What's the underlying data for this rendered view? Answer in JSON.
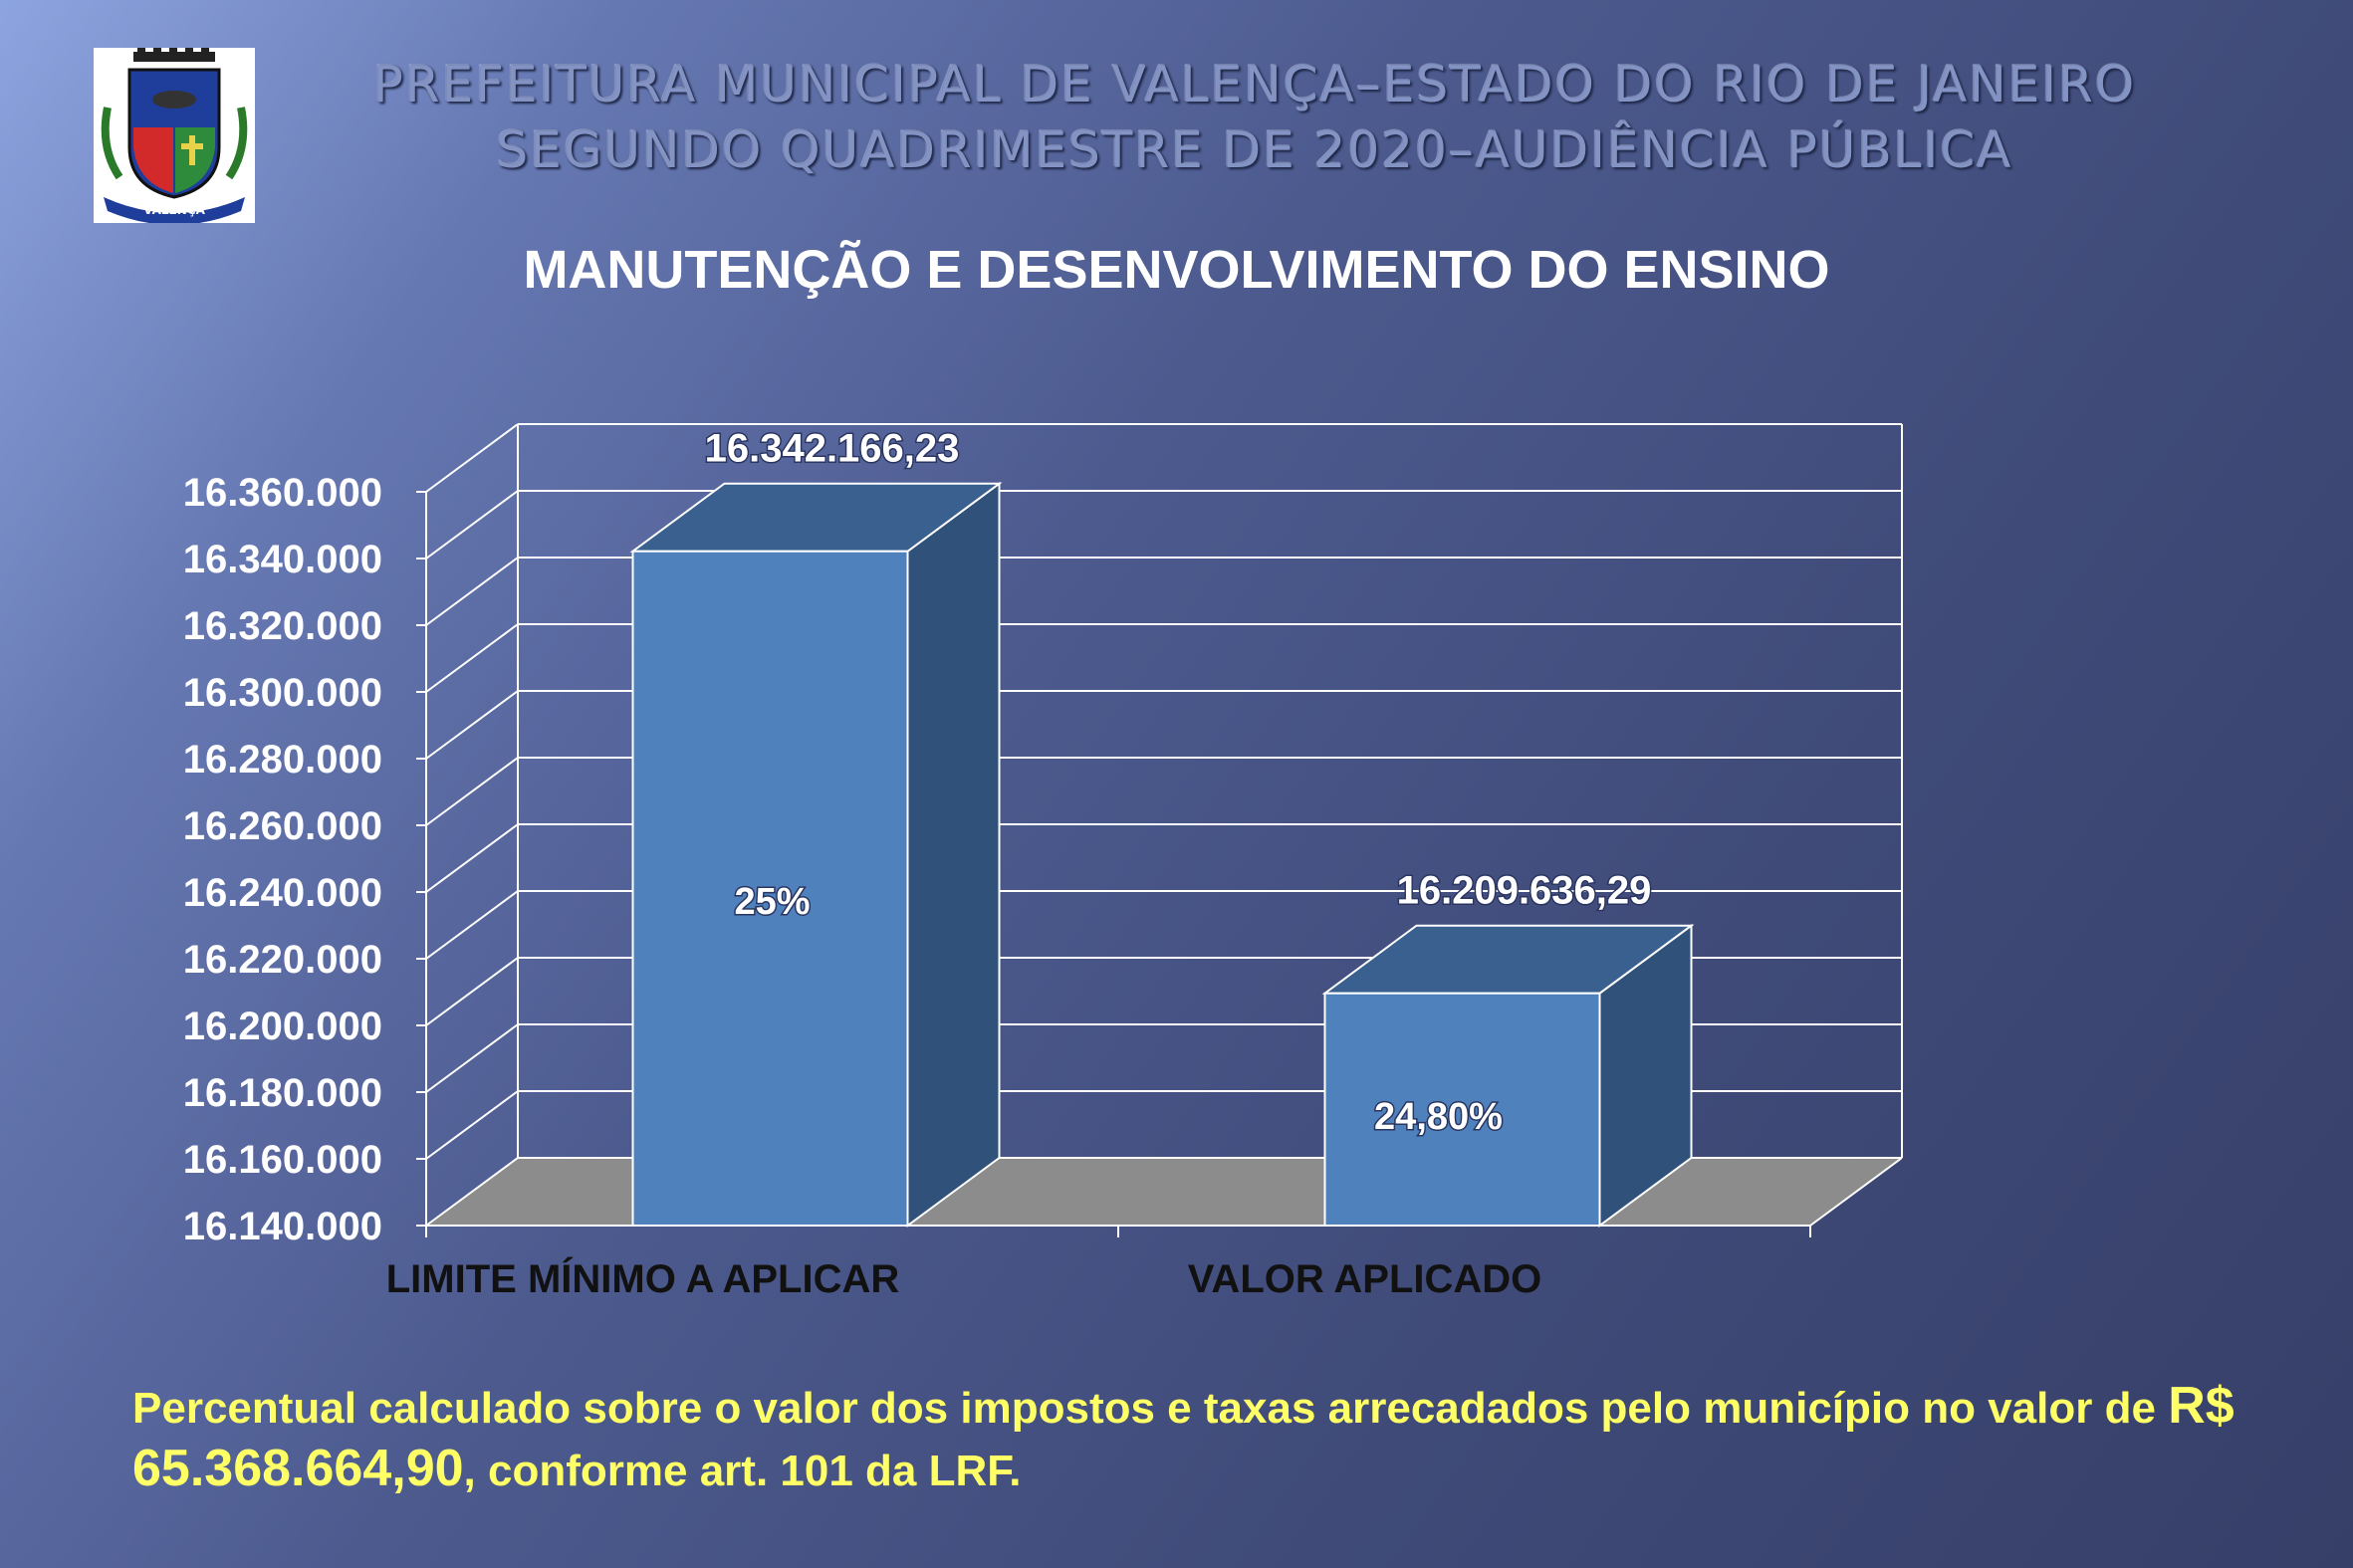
{
  "header": {
    "line1": "PREFEITURA MUNICIPAL DE VALENÇA–ESTADO DO RIO DE JANEIRO",
    "line2": "SEGUNDO QUADRIMESTRE DE 2020–AUDIÊNCIA PÚBLICA"
  },
  "logo": {
    "name": "municipal-coat-of-arms",
    "letters": "VALENÇA"
  },
  "footnote": {
    "part1": "Percentual calculado sobre o valor dos impostos e taxas arrecadados pelo município  no valor de ",
    "amount": "R$ 65.368.664,90",
    "part2": ", conforme art. 101 da LRF."
  },
  "colors": {
    "bar_front": "#4f81bd",
    "bar_side": "#30527a",
    "bar_top": "#3a6090",
    "floor": "#8c8c8c",
    "footnote": "#ffff66",
    "axis_text": "#ffffff",
    "category_text": "#111111"
  },
  "chart_data": {
    "type": "bar",
    "style": "3d-column",
    "title": "MANUTENÇÃO E DESENVOLVIMENTO DO ENSINO",
    "categories": [
      "LIMITE MÍNIMO A APLICAR",
      "VALOR APLICADO"
    ],
    "values": [
      16342166.23,
      16209636.29
    ],
    "value_labels": [
      "16.342.166,23",
      "16.209.636,29"
    ],
    "inner_labels": [
      "25%",
      "24,80%"
    ],
    "ylim": [
      16140000,
      16360000
    ],
    "yticks": [
      16140000,
      16160000,
      16180000,
      16200000,
      16220000,
      16240000,
      16260000,
      16280000,
      16300000,
      16320000,
      16340000,
      16360000
    ],
    "ytick_labels": [
      "16.140.000",
      "16.160.000",
      "16.180.000",
      "16.200.000",
      "16.220.000",
      "16.240.000",
      "16.260.000",
      "16.280.000",
      "16.300.000",
      "16.320.000",
      "16.340.000",
      "16.360.000"
    ],
    "grid": true,
    "legend": "none"
  }
}
